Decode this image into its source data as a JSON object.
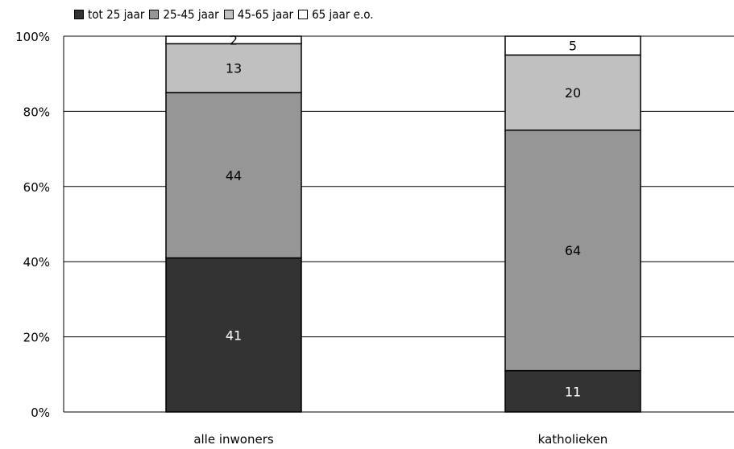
{
  "chart_data": {
    "type": "bar",
    "stacked": true,
    "categories": [
      "alle inwoners",
      "katholieken"
    ],
    "series": [
      {
        "name": "tot 25 jaar",
        "values": [
          41,
          11
        ],
        "color": "#333333"
      },
      {
        "name": "25-45 jaar",
        "values": [
          44,
          64
        ],
        "color": "#969696"
      },
      {
        "name": "45-65 jaar",
        "values": [
          13,
          20
        ],
        "color": "#c0c0c0"
      },
      {
        "name": "65 jaar e.o.",
        "values": [
          2,
          5
        ],
        "color": "#ffffff"
      }
    ],
    "ylim": [
      0,
      100
    ],
    "yticks": [
      "0%",
      "20%",
      "40%",
      "60%",
      "80%",
      "100%"
    ],
    "ytick_values": [
      0,
      20,
      40,
      60,
      80,
      100
    ],
    "grid": true,
    "legend_position": "top-left"
  }
}
